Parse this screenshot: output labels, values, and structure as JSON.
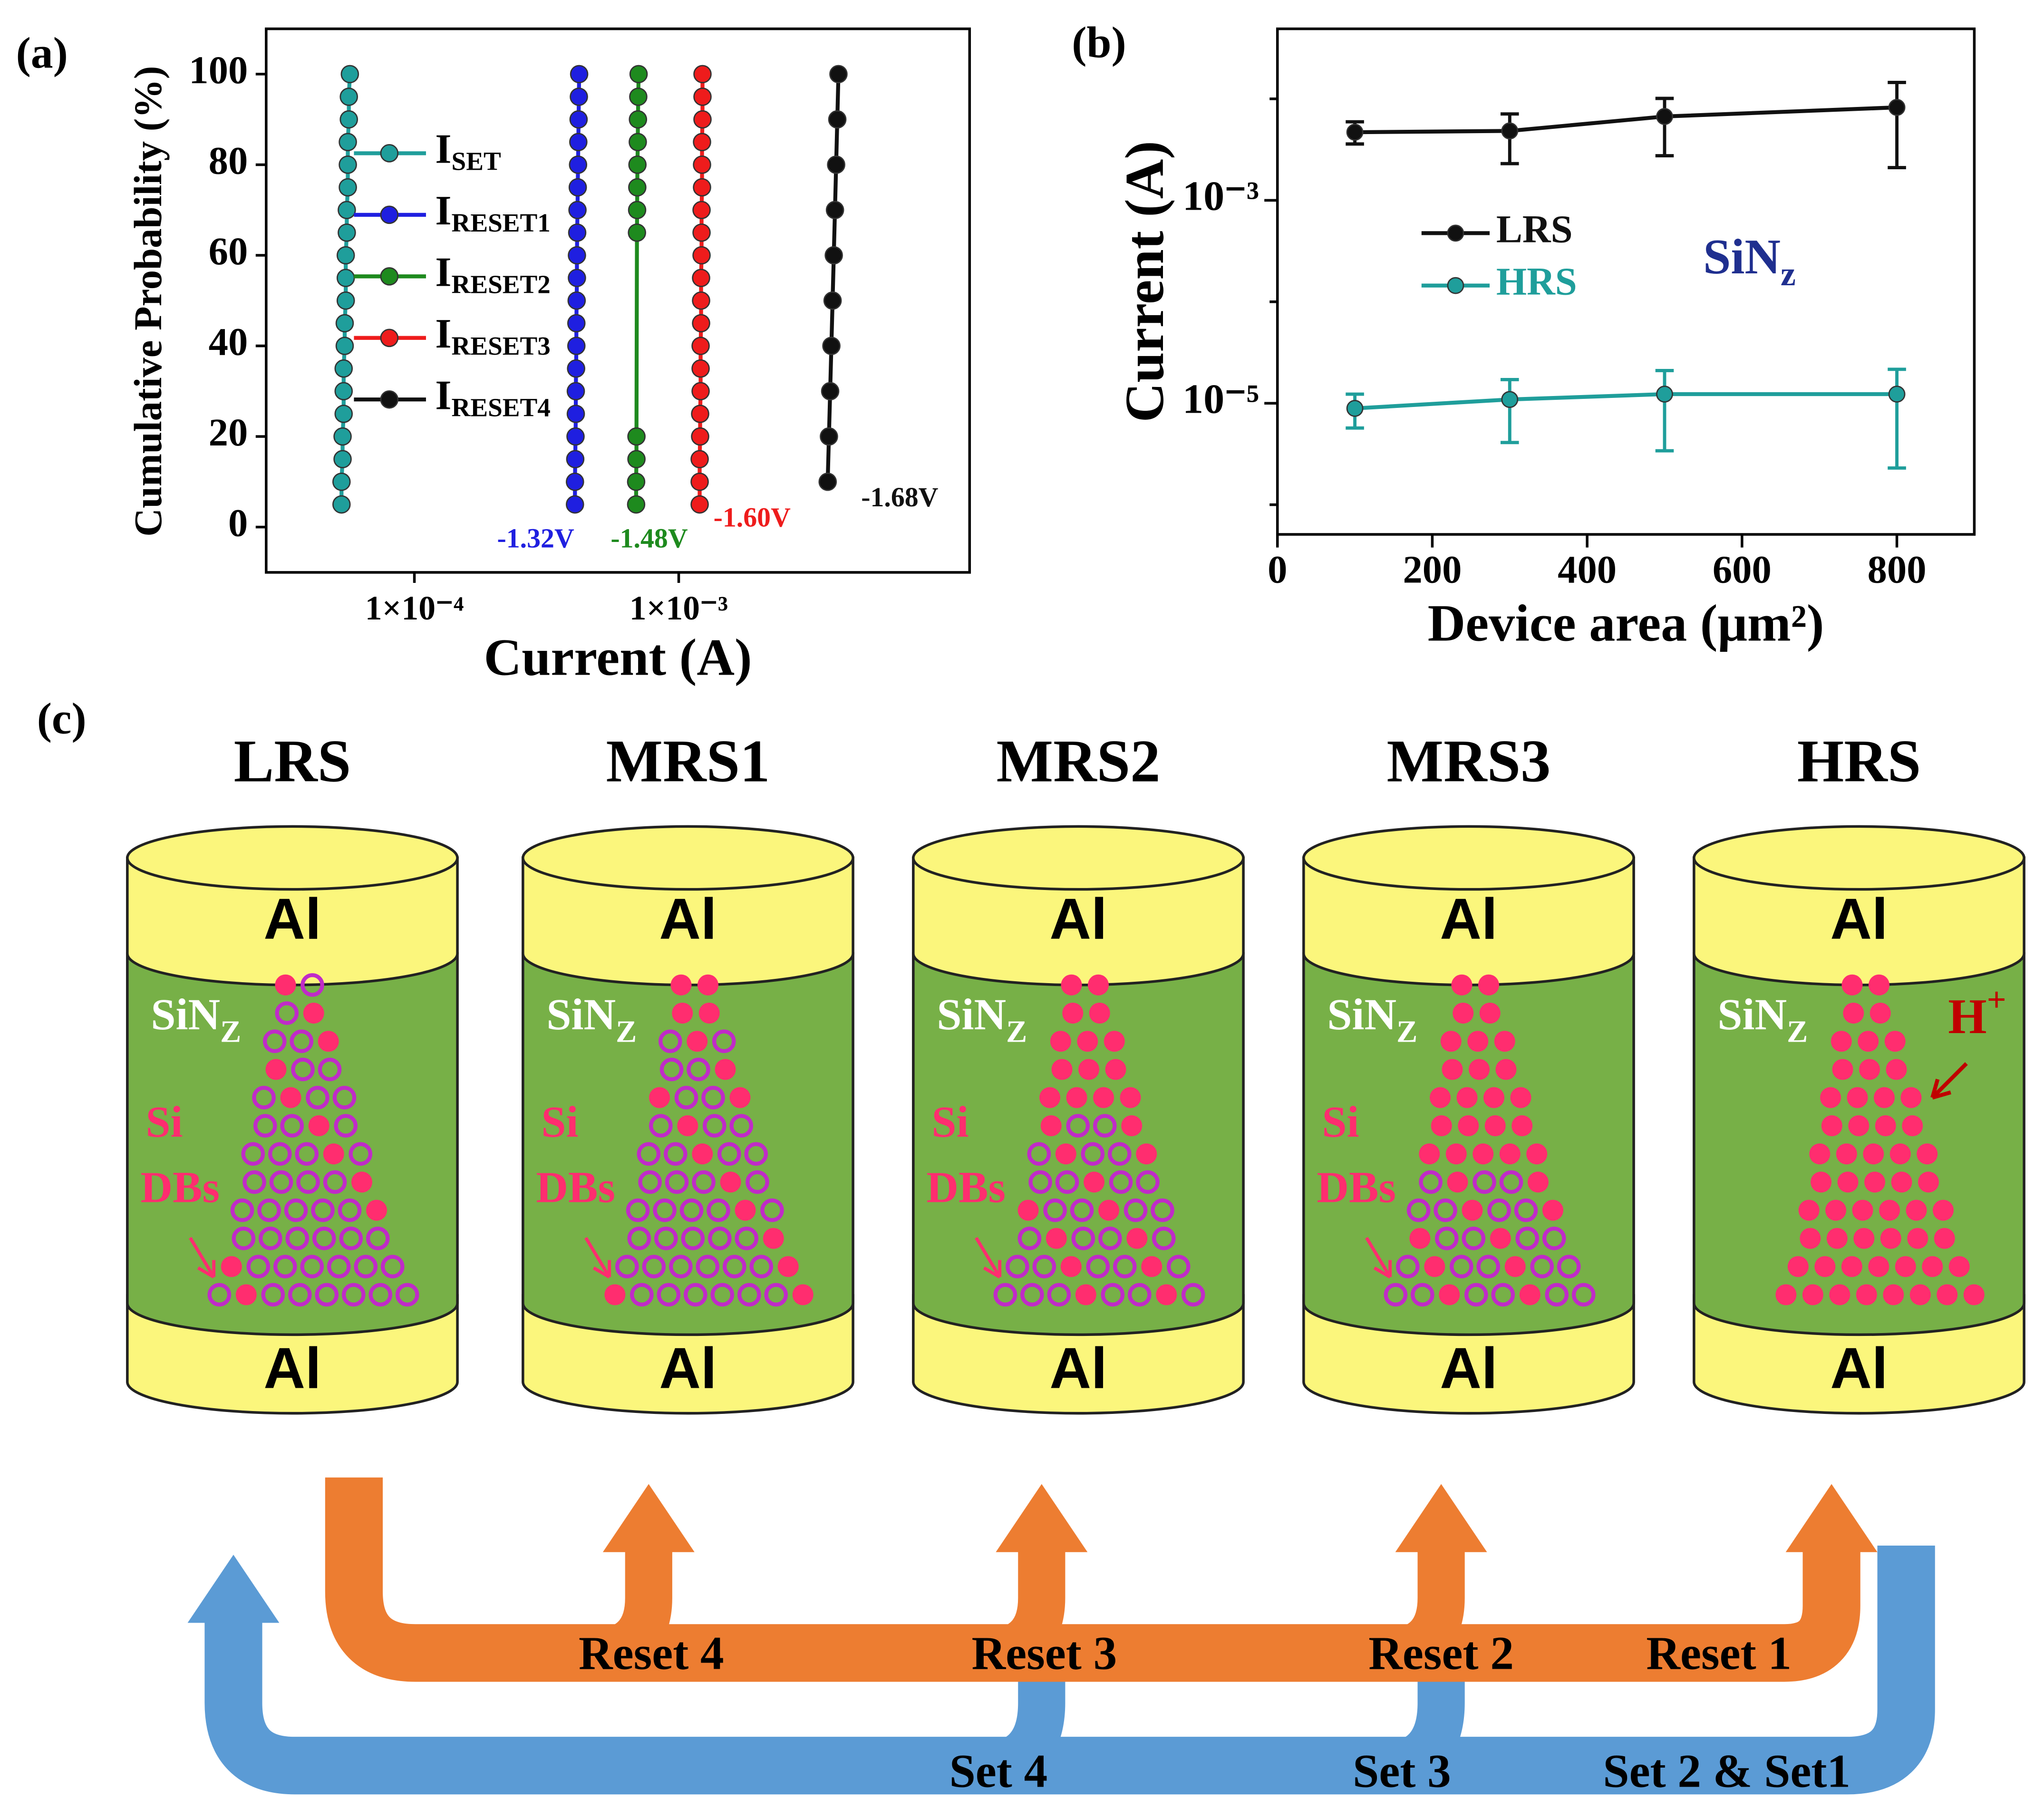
{
  "chart_data": [
    {
      "type": "line",
      "panel_label": "(a)",
      "x_label": "Current (A)",
      "y_label": "Cumulative Probability (%)",
      "xscale": "log",
      "xlim": [
        2.75e-05,
        0.0126
      ],
      "xticks": [
        {
          "value": 0.0001,
          "label": "1×10⁻⁴"
        },
        {
          "value": 0.001,
          "label": "1×10⁻³"
        }
      ],
      "ylim": [
        -10,
        110
      ],
      "yticks": [
        0,
        20,
        40,
        60,
        80,
        100
      ],
      "legend": "upper left",
      "series": [
        {
          "name": "ISET",
          "color": "#1f9e9b",
          "x": [
            5.3e-05,
            5.3e-05,
            5.35e-05,
            5.35e-05,
            5.4e-05,
            5.4e-05,
            5.4e-05,
            5.45e-05,
            5.45e-05,
            5.5e-05,
            5.5e-05,
            5.5e-05,
            5.55e-05,
            5.55e-05,
            5.6e-05,
            5.6e-05,
            5.6e-05,
            5.65e-05,
            5.65e-05,
            5.7e-05
          ],
          "values": [
            5,
            10,
            15,
            20,
            25,
            30,
            35,
            40,
            45,
            50,
            55,
            60,
            65,
            70,
            75,
            80,
            85,
            90,
            95,
            100
          ]
        },
        {
          "name": "IRESET1",
          "color": "#1f1fe0",
          "annotation": "-1.32V",
          "x": [
            0.000405,
            0.000405,
            0.000406,
            0.000407,
            0.000408,
            0.000408,
            0.000409,
            0.00041,
            0.00041,
            0.000411,
            0.000412,
            0.000412,
            0.000413,
            0.000414,
            0.000415,
            0.000416,
            0.000417,
            0.000418,
            0.000419,
            0.00042
          ],
          "values": [
            5,
            10,
            15,
            20,
            25,
            30,
            35,
            40,
            45,
            50,
            55,
            60,
            65,
            70,
            75,
            80,
            85,
            90,
            95,
            100
          ]
        },
        {
          "name": "IRESET2",
          "color": "#1e8a1e",
          "annotation": "-1.48V",
          "x": [
            0.00069,
            0.00069,
            0.000692,
            0.000692,
            0.000695,
            0.000696,
            0.000697,
            0.000698,
            0.0007,
            0.000701,
            0.000703,
            0.000705
          ],
          "values": [
            5,
            10,
            15,
            20,
            65,
            70,
            75,
            80,
            85,
            90,
            95,
            100
          ]
        },
        {
          "name": "IRESET3",
          "color": "#ee1c1c",
          "annotation": "-1.60V",
          "x": [
            0.0012,
            0.0012,
            0.0012,
            0.001205,
            0.001205,
            0.00121,
            0.00121,
            0.00121,
            0.001215,
            0.001215,
            0.001215,
            0.00122,
            0.00122,
            0.00122,
            0.001225,
            0.001225,
            0.001225,
            0.00123,
            0.00123,
            0.00123
          ],
          "values": [
            5,
            10,
            15,
            20,
            25,
            30,
            35,
            40,
            45,
            50,
            55,
            60,
            65,
            70,
            75,
            80,
            85,
            90,
            95,
            100
          ]
        },
        {
          "name": "IRESET4",
          "color": "#111111",
          "annotation": "-1.68V",
          "x": [
            0.00366,
            0.0037,
            0.00374,
            0.00378,
            0.00382,
            0.00386,
            0.0039,
            0.00394,
            0.00398,
            0.00402
          ],
          "values": [
            10,
            20,
            30,
            40,
            50,
            60,
            70,
            80,
            90,
            100
          ]
        }
      ]
    },
    {
      "type": "errorbar",
      "panel_label": "(b)",
      "x_label": "Device area (μm²)",
      "y_label": "Current (A)",
      "annotation": "SiNz",
      "yscale": "log",
      "xlim": [
        0,
        900
      ],
      "xticks": [
        0,
        200,
        400,
        600,
        800
      ],
      "ylim": [
        5.1e-07,
        0.049
      ],
      "yticks": [
        {
          "value": 0.001,
          "label": "10⁻³"
        },
        {
          "value": 1e-05,
          "label": "10⁻⁵"
        }
      ],
      "yminorticks": [
        0.01,
        0.0001,
        1e-06
      ],
      "legend": "center left",
      "series": [
        {
          "name": "LRS",
          "color": "#111111",
          "x": [
            100,
            300,
            500,
            800
          ],
          "values": [
            0.00469,
            0.00483,
            0.0067,
            0.00824
          ],
          "lower": [
            0.00359,
            0.0023,
            0.00275,
            0.0021
          ],
          "upper": [
            0.00594,
            0.0071,
            0.0101,
            0.0145
          ]
        },
        {
          "name": "HRS",
          "color": "#1f9e9b",
          "x": [
            100,
            300,
            500,
            800
          ],
          "values": [
            8.9e-06,
            1.09e-05,
            1.23e-05,
            1.23e-05
          ],
          "lower": [
            5.7e-06,
            4.1e-06,
            3.4e-06,
            2.3e-06
          ],
          "upper": [
            1.23e-05,
            1.71e-05,
            2.1e-05,
            2.16e-05
          ]
        }
      ]
    }
  ],
  "diagram": {
    "panel_label": "(c)",
    "states": [
      {
        "title": "LRS",
        "top": "Al",
        "bottom": "Al",
        "layer": "SiNZ",
        "label1": "Si",
        "label2": "DBs"
      },
      {
        "title": "MRS1",
        "top": "Al",
        "bottom": "Al",
        "layer": "SiNZ",
        "label1": "Si",
        "label2": "DBs"
      },
      {
        "title": "MRS2",
        "top": "Al",
        "bottom": "Al",
        "layer": "SiNZ",
        "label1": "Si",
        "label2": "DBs"
      },
      {
        "title": "MRS3",
        "top": "Al",
        "bottom": "Al",
        "layer": "SiNZ",
        "label1": "Si",
        "label2": "DBs"
      },
      {
        "title": "HRS",
        "top": "Al",
        "bottom": "Al",
        "layer": "SiNZ",
        "ion": "H+"
      }
    ],
    "reset": [
      "Reset 4",
      "Reset 3",
      "Reset 2",
      "Reset 1"
    ],
    "set": [
      "Set 4",
      "Set 3",
      "Set 2 & Set1"
    ]
  }
}
